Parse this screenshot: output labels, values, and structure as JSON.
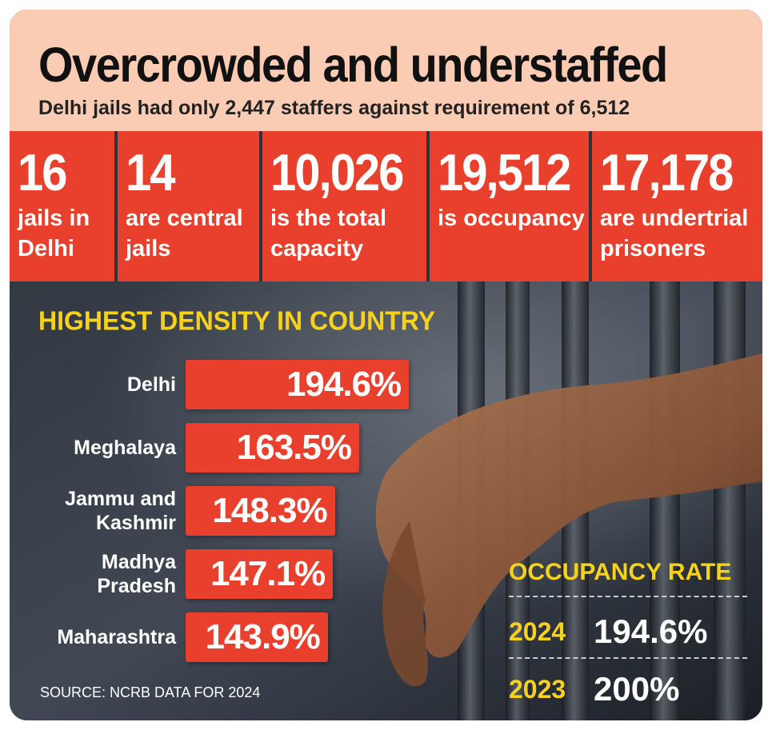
{
  "header": {
    "title": "Overcrowded and understaffed",
    "subtitle": "Delhi jails had only 2,447 staffers against requirement of 6,512"
  },
  "stats": [
    {
      "number": "16",
      "label": "jails in\nDelhi"
    },
    {
      "number": "14",
      "label": "are central\njails"
    },
    {
      "number": "10,026",
      "label": "is the total\ncapacity"
    },
    {
      "number": "19,512",
      "label": "is occupancy"
    },
    {
      "number": "17,178",
      "label": "are undertrial\nprisoners"
    }
  ],
  "colors": {
    "accent_red": "#e8402d",
    "header_bg": "#f9ccb3",
    "highlight_yellow": "#f6d21c"
  },
  "chart_data": [
    {
      "type": "bar",
      "orientation": "horizontal",
      "title": "HIGHEST DENSITY IN COUNTRY",
      "categories": [
        "Delhi",
        "Meghalaya",
        "Jammu and\nKashmir",
        "Madhya\nPradesh",
        "Maharashtra"
      ],
      "values": [
        194.6,
        163.5,
        148.3,
        147.1,
        143.9
      ],
      "value_labels": [
        "194.6%",
        "163.5%",
        "148.3%",
        "147.1%",
        "143.9%"
      ],
      "unit": "%"
    },
    {
      "type": "table",
      "title": "OCCUPANCY RATE",
      "rows": [
        {
          "year": "2024",
          "value": "194.6%"
        },
        {
          "year": "2023",
          "value": "200%"
        }
      ]
    }
  ],
  "source": "SOURCE: NCRB DATA FOR 2024"
}
